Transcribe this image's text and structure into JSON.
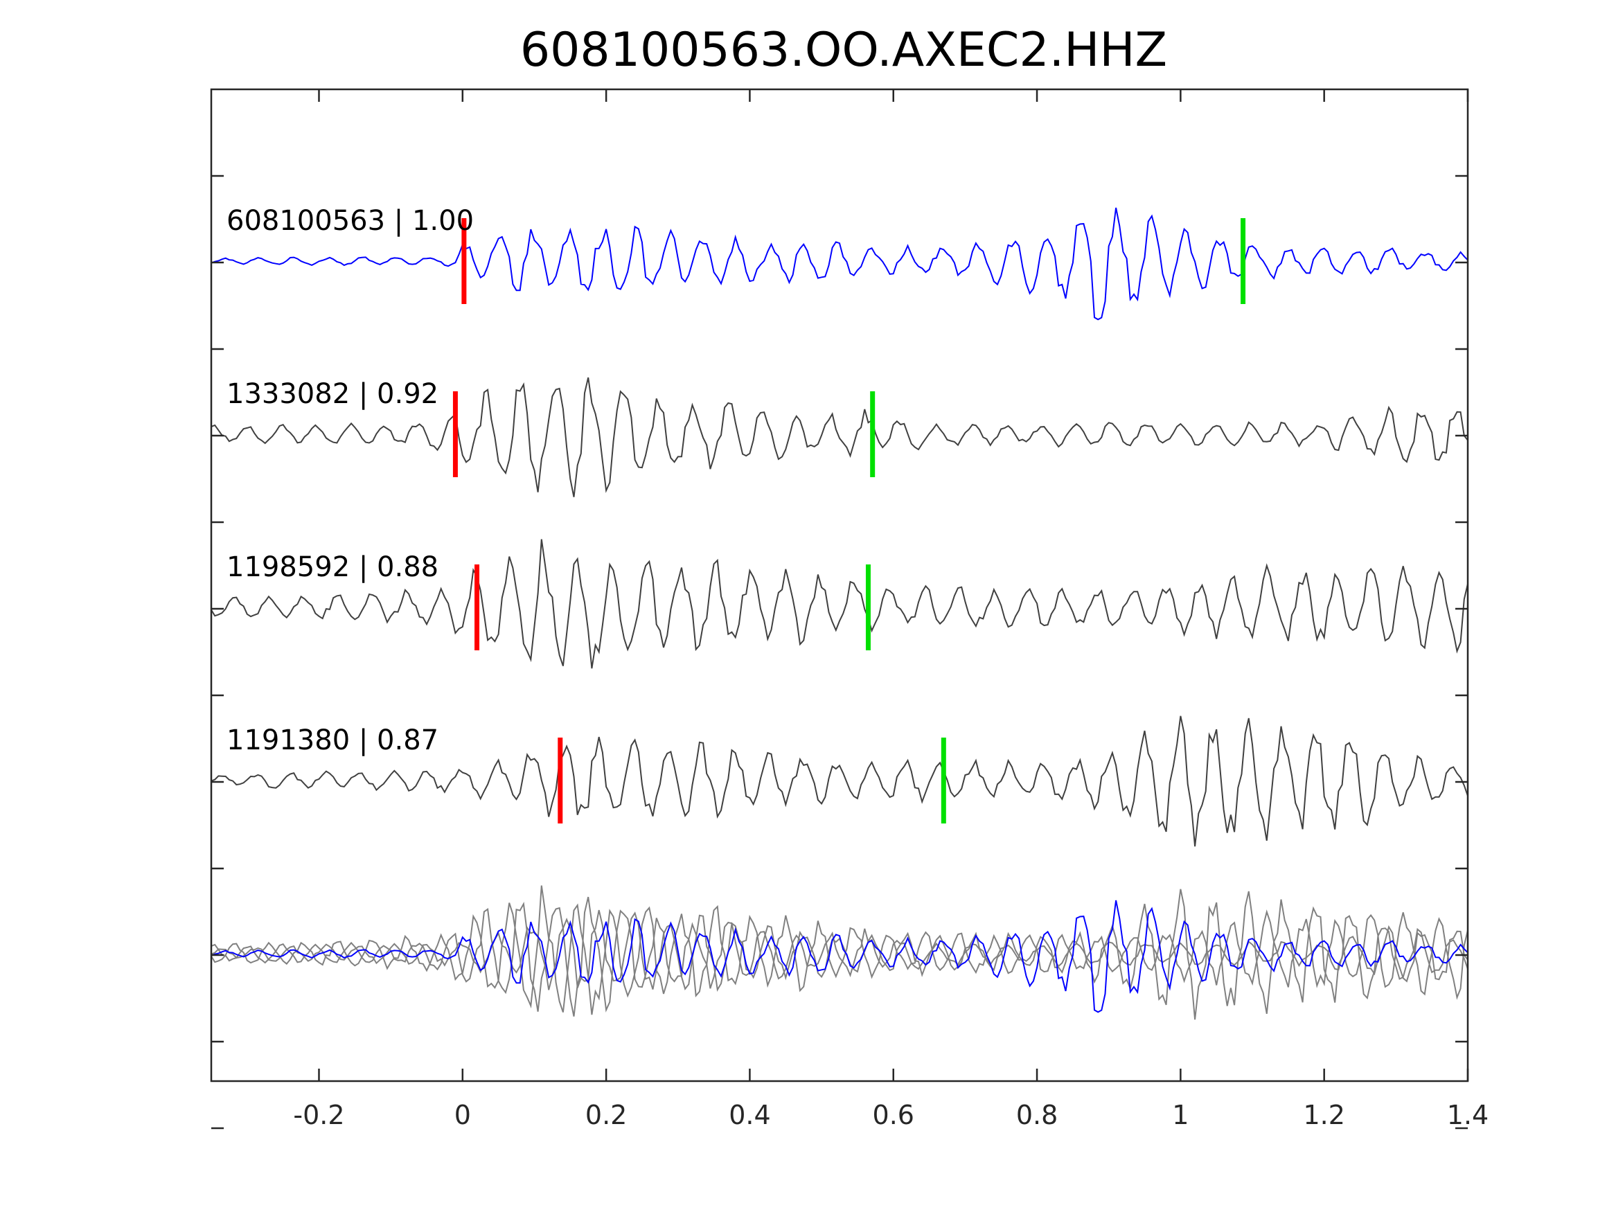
{
  "chart_data": {
    "type": "line",
    "title": "608100563.OO.AXEC2.HHZ",
    "xlabel": "",
    "ylabel": "",
    "xlim": [
      -0.35,
      1.4
    ],
    "x_ticks": [
      "-0.2",
      "0",
      "0.2",
      "0.4",
      "0.6",
      "0.8",
      "1",
      "1.2",
      "1.4"
    ],
    "x_tick_values": [
      -0.2,
      0,
      0.2,
      0.4,
      0.6,
      0.8,
      1.0,
      1.2,
      1.4
    ],
    "y_tick_count": 12,
    "grid": false,
    "legend": "none",
    "colors": {
      "template": "#0000ff",
      "match": "#404040",
      "overlay_match": "#808080",
      "p_pick": "#ff0000",
      "s_pick": "#00e000",
      "axes": "#262626"
    },
    "series": [
      {
        "name": "608100563",
        "label": "608100563 | 1.00",
        "correlation": 1.0,
        "role": "template",
        "color": "#0000ff",
        "p_pick": 0.002,
        "s_pick": 1.087,
        "envelope": [
          [
            -0.35,
            0.08
          ],
          [
            -0.02,
            0.12
          ],
          [
            0.0,
            0.45
          ],
          [
            0.1,
            0.85
          ],
          [
            0.25,
            0.85
          ],
          [
            0.35,
            0.6
          ],
          [
            0.55,
            0.45
          ],
          [
            0.65,
            0.35
          ],
          [
            0.74,
            0.55
          ],
          [
            0.86,
            1.1
          ],
          [
            0.88,
            1.7
          ],
          [
            0.93,
            1.3
          ],
          [
            1.0,
            0.8
          ],
          [
            1.1,
            0.45
          ],
          [
            1.25,
            0.35
          ],
          [
            1.4,
            0.2
          ]
        ],
        "period": 0.048
      },
      {
        "name": "1333082",
        "label": "1333082 | 0.92",
        "correlation": 0.92,
        "role": "match",
        "color": "#404040",
        "p_pick": -0.01,
        "s_pick": 0.571,
        "envelope": [
          [
            -0.35,
            0.22
          ],
          [
            -0.05,
            0.3
          ],
          [
            0.0,
            0.75
          ],
          [
            0.05,
            1.2
          ],
          [
            0.12,
            1.6
          ],
          [
            0.2,
            1.35
          ],
          [
            0.3,
            1.05
          ],
          [
            0.4,
            0.75
          ],
          [
            0.5,
            0.55
          ],
          [
            0.57,
            0.6
          ],
          [
            0.65,
            0.3
          ],
          [
            1.0,
            0.3
          ],
          [
            1.2,
            0.3
          ],
          [
            1.3,
            0.8
          ],
          [
            1.4,
            0.95
          ]
        ],
        "period": 0.048
      },
      {
        "name": "1198592",
        "label": "1198592 | 0.88",
        "correlation": 0.88,
        "role": "match",
        "color": "#404040",
        "p_pick": 0.02,
        "s_pick": 0.565,
        "envelope": [
          [
            -0.35,
            0.22
          ],
          [
            -0.05,
            0.45
          ],
          [
            0.0,
            0.75
          ],
          [
            0.1,
            1.8
          ],
          [
            0.2,
            1.5
          ],
          [
            0.3,
            1.3
          ],
          [
            0.45,
            1.0
          ],
          [
            0.55,
            0.7
          ],
          [
            0.6,
            0.5
          ],
          [
            0.9,
            0.5
          ],
          [
            1.05,
            0.75
          ],
          [
            1.1,
            1.0
          ],
          [
            1.4,
            1.1
          ]
        ],
        "period": 0.048
      },
      {
        "name": "1191380",
        "label": "1191380 | 0.87",
        "correlation": 0.87,
        "role": "match",
        "color": "#404040",
        "p_pick": 0.136,
        "s_pick": 0.67,
        "envelope": [
          [
            -0.35,
            0.15
          ],
          [
            0.0,
            0.3
          ],
          [
            0.1,
            0.8
          ],
          [
            0.17,
            1.15
          ],
          [
            0.3,
            1.0
          ],
          [
            0.5,
            0.55
          ],
          [
            0.65,
            0.5
          ],
          [
            0.85,
            0.5
          ],
          [
            0.92,
            0.9
          ],
          [
            0.98,
            1.7
          ],
          [
            1.1,
            1.5
          ],
          [
            1.25,
            1.3
          ],
          [
            1.3,
            0.7
          ],
          [
            1.4,
            0.4
          ]
        ],
        "period": 0.048
      }
    ],
    "overlay": {
      "role": "stacked overlay of all traces",
      "includes": [
        "608100563",
        "1333082",
        "1198592",
        "1191380"
      ]
    }
  }
}
